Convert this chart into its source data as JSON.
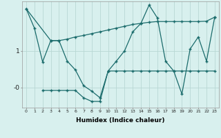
{
  "xlabel": "Humidex (Indice chaleur)",
  "bg_color": "#d8f0ee",
  "grid_color": "#b8d8d4",
  "line_color": "#1a6b6b",
  "xlim": [
    -0.5,
    23.5
  ],
  "ylim": [
    -0.55,
    2.35
  ],
  "line1_x": [
    0,
    3,
    4,
    5,
    6,
    7,
    8,
    9,
    10,
    11,
    12,
    13,
    14,
    15,
    16,
    17,
    18,
    19,
    20,
    21,
    22,
    23
  ],
  "line1_y": [
    2.15,
    1.28,
    1.28,
    1.32,
    1.38,
    1.42,
    1.47,
    1.52,
    1.57,
    1.62,
    1.67,
    1.72,
    1.75,
    1.78,
    1.8,
    1.8,
    1.8,
    1.8,
    1.8,
    1.8,
    1.81,
    1.92
  ],
  "line2_x": [
    0,
    1,
    2,
    3,
    4,
    5,
    6,
    7,
    8,
    9,
    10,
    11,
    12,
    13,
    14,
    15,
    16,
    17,
    18,
    19,
    20,
    21,
    22,
    23
  ],
  "line2_y": [
    2.15,
    1.62,
    0.7,
    1.28,
    1.28,
    0.72,
    0.48,
    0.05,
    -0.1,
    -0.28,
    0.45,
    0.72,
    1.0,
    1.52,
    1.75,
    2.25,
    1.9,
    0.72,
    0.45,
    -0.18,
    1.05,
    1.38,
    0.72,
    1.92
  ],
  "line3_x": [
    2,
    3,
    4,
    5,
    6,
    7,
    8,
    9,
    10,
    11,
    12,
    13,
    14,
    15,
    16,
    17,
    18,
    19,
    20,
    21,
    22,
    23
  ],
  "line3_y": [
    -0.08,
    -0.08,
    -0.08,
    -0.08,
    -0.08,
    -0.28,
    -0.38,
    -0.38,
    0.45,
    0.45,
    0.45,
    0.45,
    0.45,
    0.45,
    0.45,
    0.45,
    0.45,
    0.45,
    0.45,
    0.45,
    0.45,
    0.45
  ]
}
